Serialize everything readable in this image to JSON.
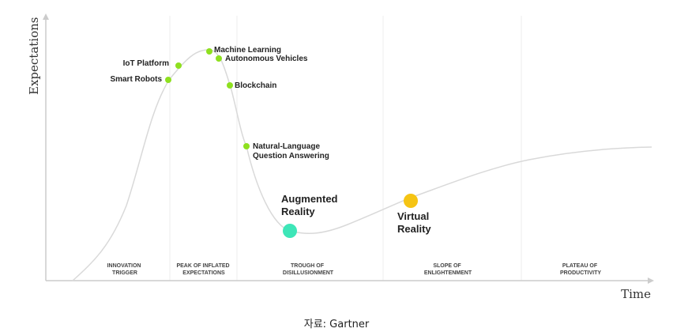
{
  "axes": {
    "y_label": "Expectations",
    "x_label": "Time"
  },
  "phases": [
    {
      "id": "innovation-trigger",
      "lines": [
        "INNOVATION",
        "TRIGGER"
      ]
    },
    {
      "id": "peak-of-inflated-expectations",
      "lines": [
        "PEAK OF INFLATED",
        "EXPECTATIONS"
      ]
    },
    {
      "id": "trough-of-disillusionment",
      "lines": [
        "TROUGH OF",
        "DISILLUSIONMENT"
      ]
    },
    {
      "id": "slope-of-enlightenment",
      "lines": [
        "SLOPE OF",
        "ENLIGHTENMENT"
      ]
    },
    {
      "id": "plateau-of-productivity",
      "lines": [
        "PLATEAU OF",
        "PRODUCTIVITY"
      ]
    }
  ],
  "technologies": [
    {
      "id": "smart-robots",
      "lines": [
        "Smart Robots"
      ]
    },
    {
      "id": "iot-platform",
      "lines": [
        "IoT Platform"
      ]
    },
    {
      "id": "machine-learning",
      "lines": [
        "Machine Learning"
      ]
    },
    {
      "id": "autonomous-vehicles",
      "lines": [
        "Autonomous Vehicles"
      ]
    },
    {
      "id": "blockchain",
      "lines": [
        "Blockchain"
      ]
    },
    {
      "id": "natural-language-question-answering",
      "lines": [
        "Natural-Language",
        "Question Answering"
      ]
    },
    {
      "id": "augmented-reality",
      "lines": [
        "Augmented",
        "Reality"
      ]
    },
    {
      "id": "virtual-reality",
      "lines": [
        "Virtual",
        "Reality"
      ]
    }
  ],
  "colors": {
    "small_marker": "#8ee01f",
    "augmented_reality_marker": "#3ee6b8",
    "virtual_reality_marker": "#f5c414",
    "curve": "#d9d9d9",
    "axis": "#cccccc",
    "phase_divider": "#eeeeee"
  },
  "caption": "자료: Gartner"
}
